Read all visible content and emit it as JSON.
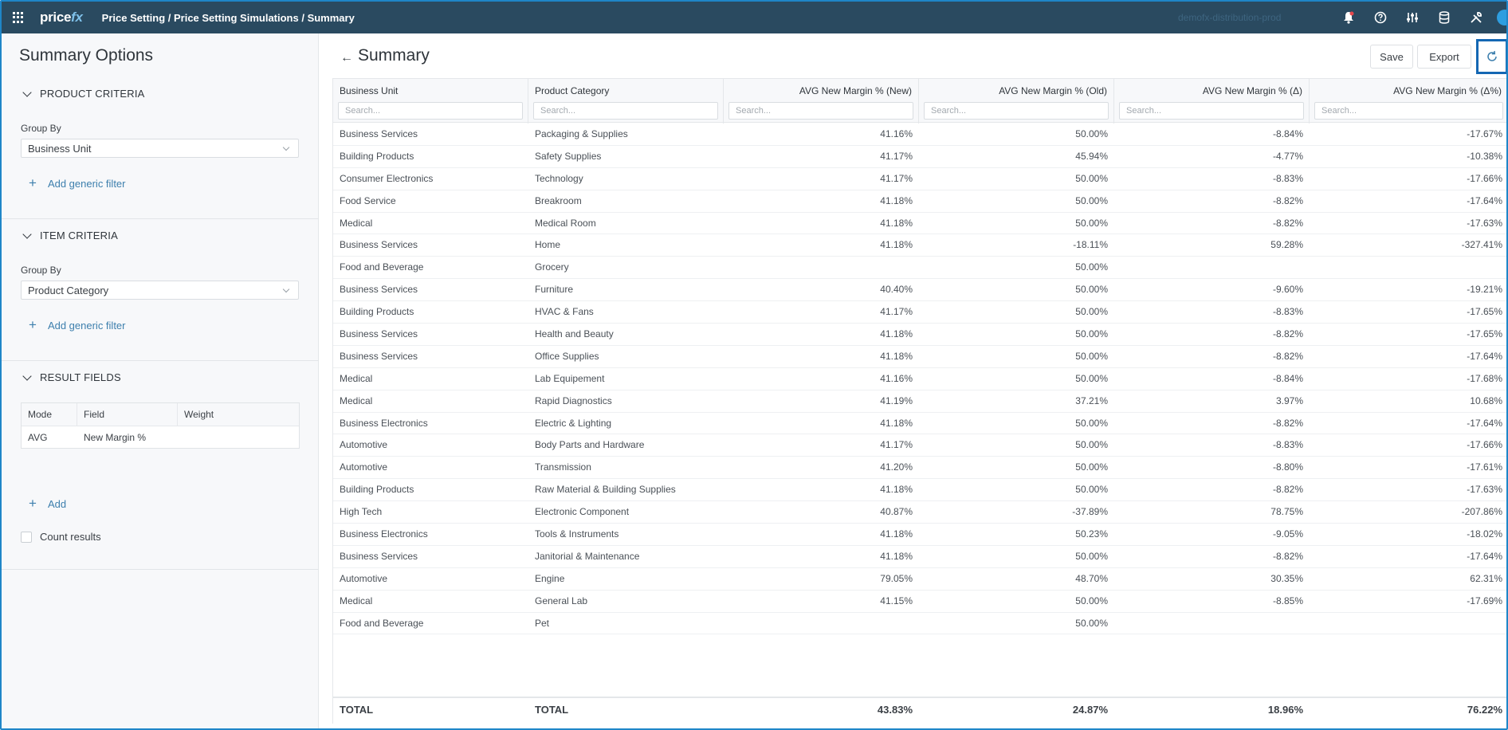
{
  "topbar": {
    "app_name_main": "price",
    "app_name_accent": "fx",
    "breadcrumb": "Price Setting / Price Setting Simulations / Summary",
    "environment": "demofx-distribution-prod"
  },
  "left_panel": {
    "title": "Summary Options",
    "product_criteria": {
      "heading": "PRODUCT CRITERIA",
      "group_by_label": "Group By",
      "group_by_value": "Business Unit",
      "add_filter": "Add generic filter"
    },
    "item_criteria": {
      "heading": "ITEM CRITERIA",
      "group_by_label": "Group By",
      "group_by_value": "Product Category",
      "add_filter": "Add generic filter"
    },
    "result_fields": {
      "heading": "RESULT FIELDS",
      "columns": [
        "Mode",
        "Field",
        "Weight"
      ],
      "rows": [
        [
          "AVG",
          "New Margin %",
          ""
        ]
      ],
      "add_label": "Add",
      "count_results": "Count results"
    }
  },
  "main": {
    "title": "Summary",
    "save_label": "Save",
    "export_label": "Export",
    "search_placeholder": "Search...",
    "columns": [
      "Business Unit",
      "Product Category",
      "AVG New Margin % (New)",
      "AVG New Margin % (Old)",
      "AVG New Margin % (Δ)",
      "AVG New Margin % (Δ%)"
    ],
    "rows": [
      [
        "Business Services",
        "Packaging & Supplies",
        "41.16%",
        "50.00%",
        "-8.84%",
        "-17.67%"
      ],
      [
        "Building Products",
        "Safety Supplies",
        "41.17%",
        "45.94%",
        "-4.77%",
        "-10.38%"
      ],
      [
        "Consumer Electronics",
        "Technology",
        "41.17%",
        "50.00%",
        "-8.83%",
        "-17.66%"
      ],
      [
        "Food Service",
        "Breakroom",
        "41.18%",
        "50.00%",
        "-8.82%",
        "-17.64%"
      ],
      [
        "Medical",
        "Medical Room",
        "41.18%",
        "50.00%",
        "-8.82%",
        "-17.63%"
      ],
      [
        "Business Services",
        "Home",
        "41.18%",
        "-18.11%",
        "59.28%",
        "-327.41%"
      ],
      [
        "Food and Beverage",
        "Grocery",
        "",
        "50.00%",
        "",
        ""
      ],
      [
        "Business Services",
        "Furniture",
        "40.40%",
        "50.00%",
        "-9.60%",
        "-19.21%"
      ],
      [
        "Building Products",
        "HVAC & Fans",
        "41.17%",
        "50.00%",
        "-8.83%",
        "-17.65%"
      ],
      [
        "Business Services",
        "Health and Beauty",
        "41.18%",
        "50.00%",
        "-8.82%",
        "-17.65%"
      ],
      [
        "Business Services",
        "Office Supplies",
        "41.18%",
        "50.00%",
        "-8.82%",
        "-17.64%"
      ],
      [
        "Medical",
        "Lab Equipement",
        "41.16%",
        "50.00%",
        "-8.84%",
        "-17.68%"
      ],
      [
        "Medical",
        "Rapid Diagnostics",
        "41.19%",
        "37.21%",
        "3.97%",
        "10.68%"
      ],
      [
        "Business Electronics",
        "Electric & Lighting",
        "41.18%",
        "50.00%",
        "-8.82%",
        "-17.64%"
      ],
      [
        "Automotive",
        "Body Parts and Hardware",
        "41.17%",
        "50.00%",
        "-8.83%",
        "-17.66%"
      ],
      [
        "Automotive",
        "Transmission",
        "41.20%",
        "50.00%",
        "-8.80%",
        "-17.61%"
      ],
      [
        "Building Products",
        "Raw Material & Building Supplies",
        "41.18%",
        "50.00%",
        "-8.82%",
        "-17.63%"
      ],
      [
        "High Tech",
        "Electronic Component",
        "40.87%",
        "-37.89%",
        "78.75%",
        "-207.86%"
      ],
      [
        "Business Electronics",
        "Tools & Instruments",
        "41.18%",
        "50.23%",
        "-9.05%",
        "-18.02%"
      ],
      [
        "Business Services",
        "Janitorial & Maintenance",
        "41.18%",
        "50.00%",
        "-8.82%",
        "-17.64%"
      ],
      [
        "Automotive",
        "Engine",
        "79.05%",
        "48.70%",
        "30.35%",
        "62.31%"
      ],
      [
        "Medical",
        "General Lab",
        "41.15%",
        "50.00%",
        "-8.85%",
        "-17.69%"
      ],
      [
        "Food and Beverage",
        "Pet",
        "",
        "50.00%",
        "",
        ""
      ]
    ],
    "totals": [
      "TOTAL",
      "TOTAL",
      "43.83%",
      "24.87%",
      "18.96%",
      "76.22%"
    ]
  },
  "colors": {
    "topbar": "#2a4a60",
    "accent": "#3d7fad",
    "highlight_border": "#1467b3"
  }
}
